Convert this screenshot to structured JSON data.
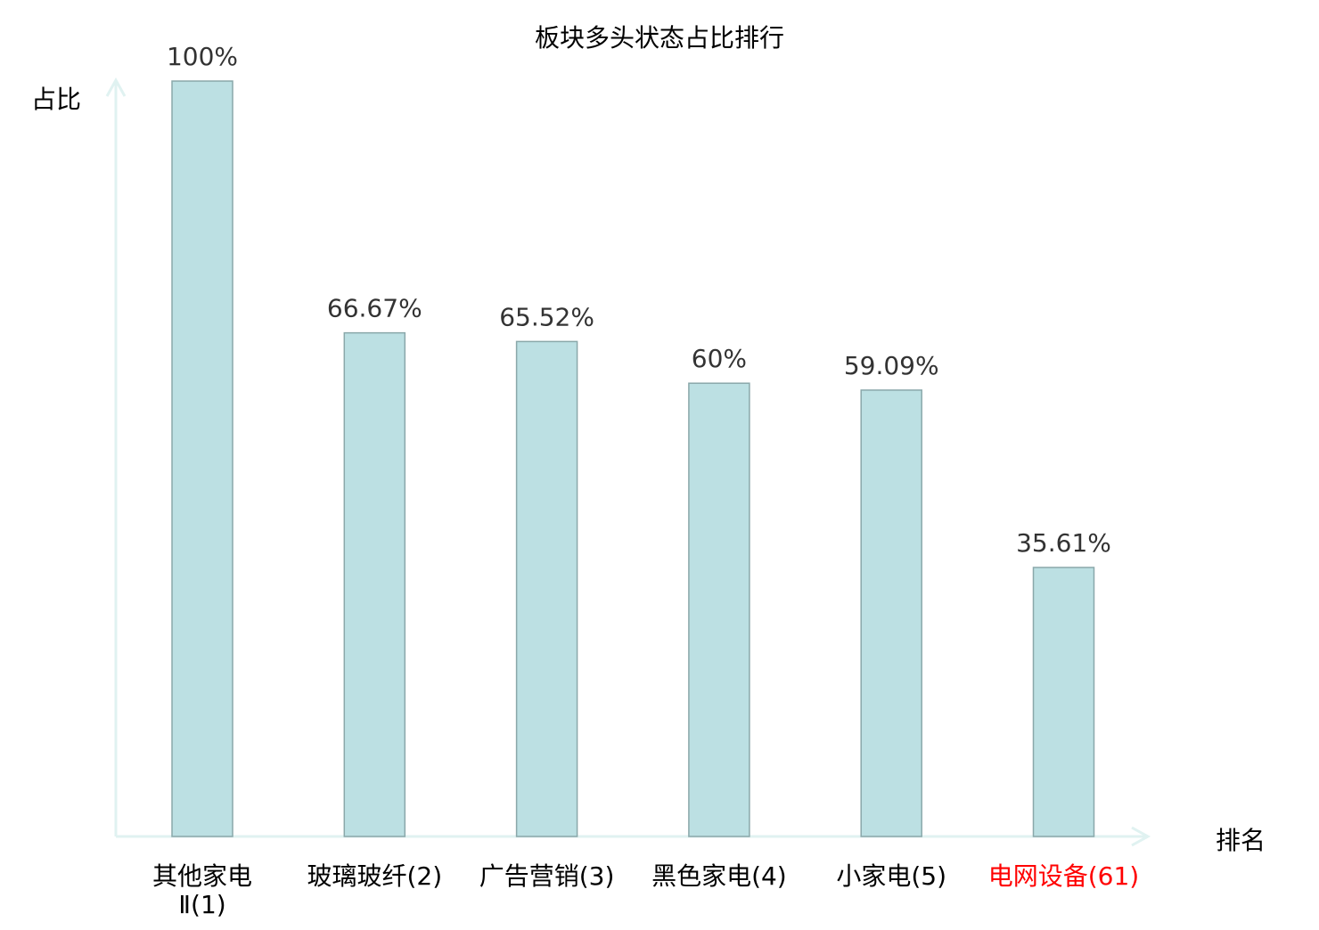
{
  "chart_data": {
    "type": "bar",
    "title": "板块多头状态占比排行",
    "ylabel": "占比",
    "xlabel": "排名",
    "ylim": [
      0,
      100
    ],
    "grid": false,
    "categories": [
      "其他家电Ⅱ(1)",
      "玻璃玻纤(2)",
      "广告营销(3)",
      "黑色家电(4)",
      "小家电(5)",
      "电网设备(61)"
    ],
    "category_lines": [
      [
        "其他家电",
        "Ⅱ(1)"
      ],
      [
        "玻璃玻纤(2)"
      ],
      [
        "广告营销(3)"
      ],
      [
        "黑色家电(4)"
      ],
      [
        "小家电(5)"
      ],
      [
        "电网设备(61)"
      ]
    ],
    "values": [
      100,
      66.67,
      65.52,
      60,
      59.09,
      35.61
    ],
    "data_labels": [
      "100%",
      "66.67%",
      "65.52%",
      "60%",
      "59.09%",
      "35.61%"
    ],
    "highlighted_category": "电网设备(61)",
    "colors": {
      "bar_fill": "#bce0e3",
      "bar_stroke": "#8aa8aa",
      "axis": "#e0f2f1",
      "highlight_label": "#ff0000",
      "text": "#000000",
      "data_label": "#333333"
    }
  }
}
